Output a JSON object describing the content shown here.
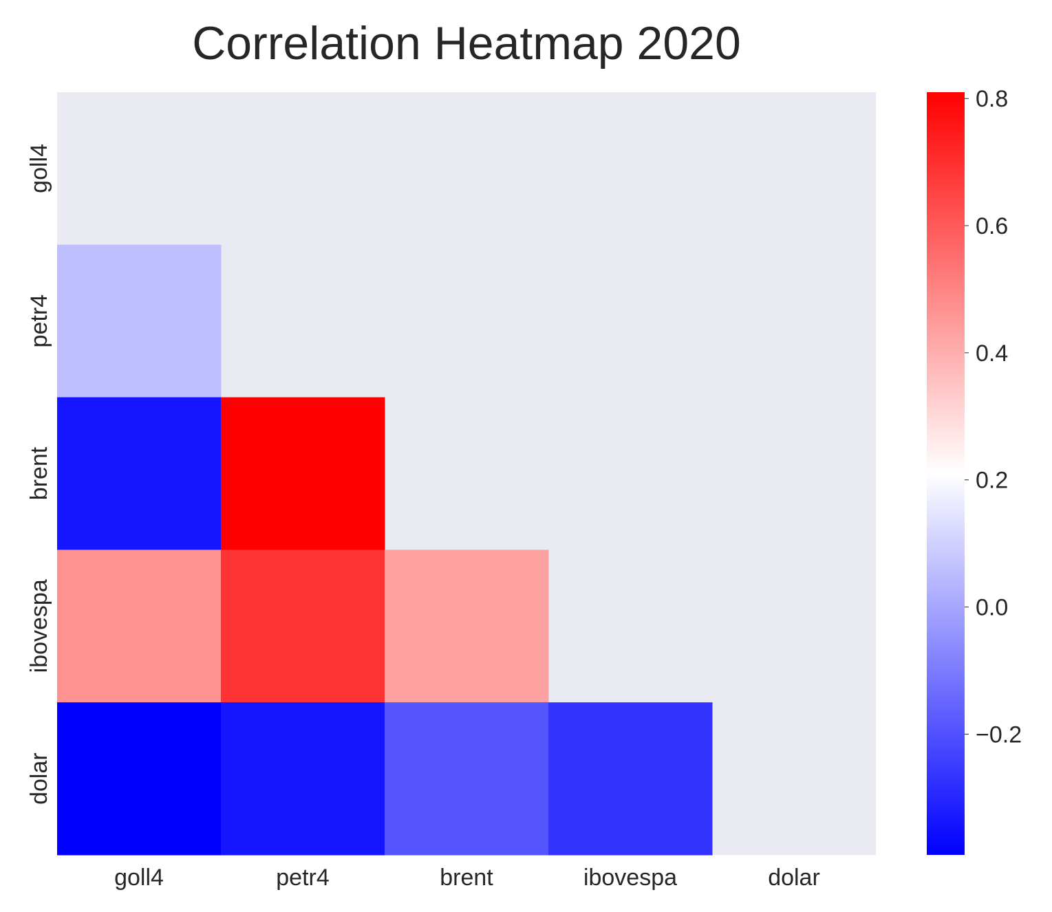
{
  "chart_data": {
    "type": "heatmap",
    "title": "Correlation Heatmap 2020",
    "xlabel": "",
    "ylabel": "",
    "row_labels": [
      "goll4",
      "petr4",
      "brent",
      "ibovespa",
      "dolar"
    ],
    "col_labels": [
      "goll4",
      "petr4",
      "brent",
      "ibovespa",
      "dolar"
    ],
    "mask": "upper-triangle-including-diagonal",
    "values": [
      [
        null,
        null,
        null,
        null,
        null
      ],
      [
        0.06,
        null,
        null,
        null,
        null
      ],
      [
        -0.34,
        0.81,
        null,
        null,
        null
      ],
      [
        0.47,
        0.69,
        0.43,
        null,
        null
      ],
      [
        -0.39,
        -0.34,
        -0.19,
        -0.27,
        null
      ]
    ],
    "colormap": "bwr",
    "vmin": -0.39,
    "vmax": 0.81,
    "colorbar": {
      "ticks": [
        -0.2,
        0.0,
        0.2,
        0.4,
        0.6,
        0.8
      ],
      "tick_labels": [
        "−0.2",
        "0.0",
        "0.2",
        "0.4",
        "0.6",
        "0.8"
      ]
    },
    "masked_cell_color": "#eaeaf2",
    "grid": false,
    "legend": "colorbar-right"
  }
}
